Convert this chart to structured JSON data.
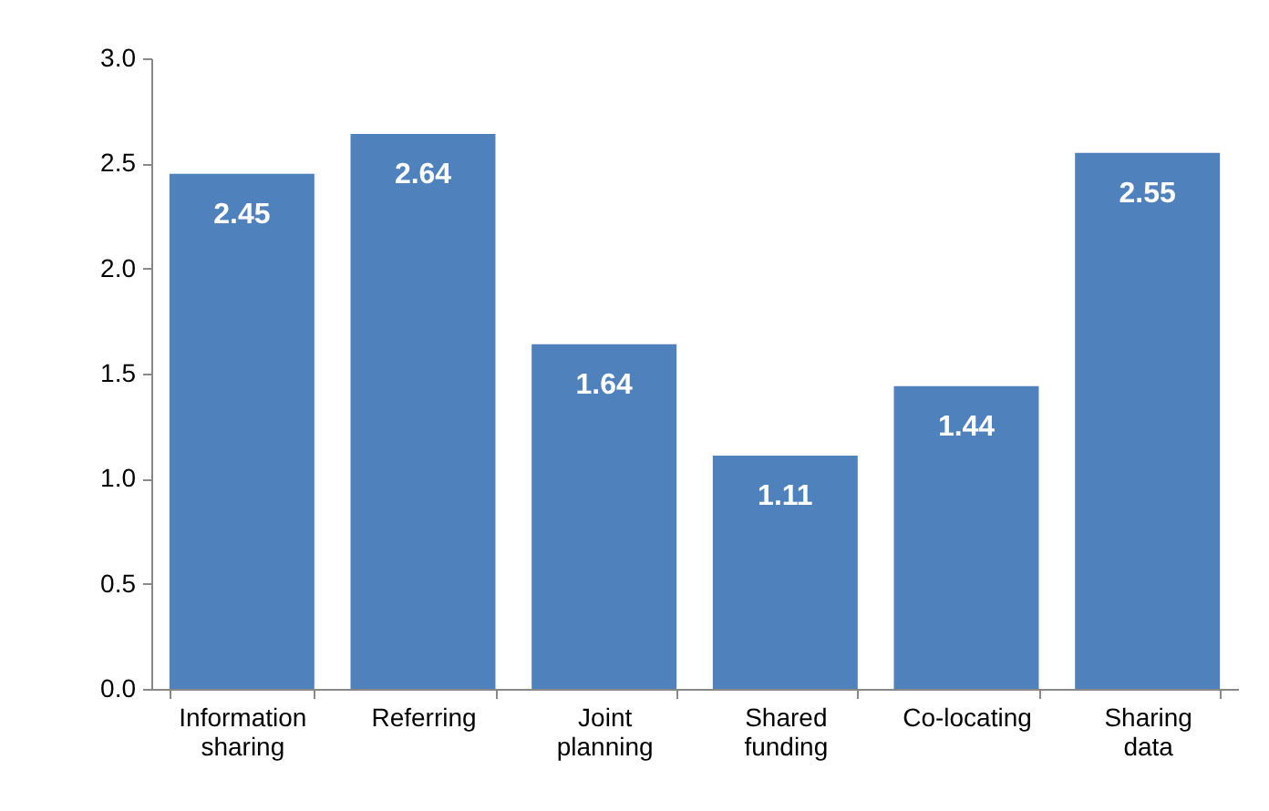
{
  "chart_data": {
    "type": "bar",
    "categories": [
      "Information sharing",
      "Referring",
      "Joint planning",
      "Shared funding",
      "Co-locating",
      "Sharing data"
    ],
    "values": [
      2.45,
      2.64,
      1.64,
      1.11,
      1.44,
      2.55
    ],
    "color": "#4f81bd",
    "ylim": [
      0,
      3.0
    ],
    "yticks": [
      {
        "value": 0,
        "label": "0.0"
      },
      {
        "value": 0.5,
        "label": "0.5"
      },
      {
        "value": 1,
        "label": "1.0"
      },
      {
        "value": 1.5,
        "label": "1.5"
      },
      {
        "value": 2,
        "label": "2.0"
      },
      {
        "value": 2.5,
        "label": "2.5"
      },
      {
        "value": 3,
        "label": "3.0"
      }
    ],
    "data_labels": true,
    "grid": false
  }
}
